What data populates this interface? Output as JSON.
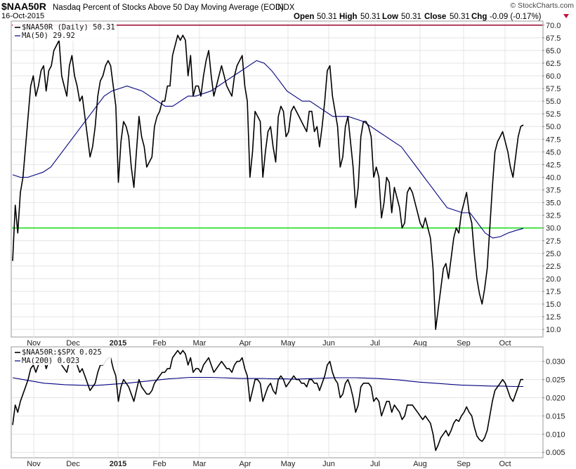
{
  "header": {
    "symbol": "$NAA50R",
    "description": "Nasdaq Percent of Stocks Above 50 Day Moving Average (EOD)",
    "exchange": "INDX",
    "date": "16-Oct-2015",
    "open_label": "Open",
    "open": "50.31",
    "high_label": "High",
    "high": "50.31",
    "low_label": "Low",
    "low": "50.31",
    "close_label": "Close",
    "close": "50.31",
    "chg_label": "Chg",
    "chg": "-0.09 (-0.17%)",
    "watermark": "© StockCharts.com",
    "down_arrow": "triangle-down-icon"
  },
  "chart_data": [
    {
      "type": "line",
      "panel": "main",
      "legend": [
        "$NAA50R (Daily) 50.31",
        "MA(50) 29.92"
      ],
      "ylim": [
        8.5,
        70.8
      ],
      "y_ticks": [
        "70.0",
        "67.5",
        "65.0",
        "62.5",
        "60.0",
        "57.5",
        "55.0",
        "52.5",
        "50.0",
        "47.5",
        "45.0",
        "42.5",
        "40.0",
        "37.5",
        "35.0",
        "32.5",
        "30.0",
        "27.5",
        "25.0",
        "22.5",
        "20.0",
        "17.5",
        "15.0",
        "12.5",
        "10.0"
      ],
      "x_labels": [
        "Nov",
        "Dec",
        "2015",
        "Feb",
        "Mar",
        "Apr",
        "May",
        "Jun",
        "Jul",
        "Aug",
        "Sep",
        "Oct"
      ],
      "reference_lines": [
        {
          "value": 70,
          "color": "#a0173a"
        },
        {
          "value": 30,
          "color": "#22dd22"
        }
      ],
      "series": [
        {
          "name": "$NAA50R (Daily)",
          "color": "#000000",
          "values": [
            23.5,
            34.5,
            29,
            37,
            40,
            46,
            52,
            58,
            60,
            56,
            58,
            61,
            62,
            57,
            61,
            62,
            65,
            66,
            67,
            60,
            58,
            56,
            62,
            64,
            60,
            58,
            55,
            56,
            52,
            48,
            44,
            46,
            50,
            56,
            59,
            60,
            62,
            63,
            62,
            58,
            54,
            39,
            47,
            51,
            50,
            48,
            42,
            38,
            45,
            52,
            48,
            46,
            42,
            43,
            44,
            50,
            52,
            53,
            55,
            55,
            58,
            58,
            64,
            66,
            68,
            67,
            68,
            67,
            60,
            64,
            56,
            58,
            58,
            56,
            60,
            63,
            65,
            60,
            56,
            58,
            60,
            62,
            60,
            58,
            57,
            56,
            60,
            62,
            63,
            64,
            58,
            55,
            40,
            45,
            53,
            52,
            51,
            40,
            45,
            49,
            50,
            46,
            43,
            52,
            54,
            53,
            48,
            49,
            53,
            54,
            53,
            52,
            51,
            50,
            49,
            53,
            53,
            49,
            50,
            46,
            50,
            55,
            61,
            62,
            56,
            53,
            50,
            42,
            44,
            50,
            52,
            47,
            42,
            34,
            38,
            48,
            51,
            51,
            50,
            48,
            40,
            42,
            40,
            32,
            35,
            40,
            39,
            33,
            38,
            36,
            34,
            30,
            31,
            37,
            38,
            37,
            35,
            33,
            31,
            30,
            32,
            30,
            28,
            22,
            10,
            14,
            18,
            22,
            23,
            20,
            24,
            28,
            30,
            29,
            33,
            35,
            37,
            33,
            31,
            25,
            20,
            17,
            15,
            18,
            22,
            30,
            38,
            45,
            47,
            48,
            49,
            47,
            45,
            42,
            40,
            44,
            48,
            50,
            50.31
          ]
        },
        {
          "name": "MA(50)",
          "color": "#000080",
          "values": [
            40.5,
            40,
            40,
            40.5,
            41,
            42,
            44,
            46,
            48,
            50,
            52,
            54,
            56,
            57,
            57.5,
            58,
            57.5,
            57,
            56,
            55,
            54,
            54,
            55,
            56,
            56,
            56.5,
            57,
            58,
            59,
            60,
            61,
            62,
            63,
            62.5,
            61,
            59,
            57,
            56,
            55,
            55,
            54,
            53,
            52,
            52,
            52,
            51.5,
            51,
            50,
            49,
            48,
            47,
            46,
            44,
            42,
            40,
            38,
            36,
            34,
            33.5,
            33,
            33,
            31,
            29,
            28,
            28.3,
            29,
            29.5,
            29.92
          ]
        }
      ]
    },
    {
      "type": "line",
      "panel": "lower",
      "legend": [
        "$NAA50R:$SPX 0.025",
        "MA(200) 0.023"
      ],
      "ylim": [
        0.0035,
        0.034
      ],
      "y_ticks": [
        "0.030",
        "0.025",
        "0.020",
        "0.015",
        "0.010",
        "0.005"
      ],
      "x_labels": [
        "Nov",
        "Dec",
        "2015",
        "Feb",
        "Mar",
        "Apr",
        "May",
        "Jun",
        "Jul",
        "Aug",
        "Sep",
        "Oct"
      ],
      "series": [
        {
          "name": "$NAA50R:$SPX",
          "color": "#000000",
          "values": [
            0.0125,
            0.018,
            0.016,
            0.019,
            0.021,
            0.023,
            0.025,
            0.028,
            0.029,
            0.027,
            0.029,
            0.03,
            0.031,
            0.028,
            0.03,
            0.031,
            0.032,
            0.032,
            0.033,
            0.029,
            0.028,
            0.027,
            0.03,
            0.031,
            0.03,
            0.029,
            0.027,
            0.028,
            0.026,
            0.024,
            0.022,
            0.023,
            0.024,
            0.027,
            0.029,
            0.029,
            0.03,
            0.031,
            0.031,
            0.028,
            0.026,
            0.019,
            0.023,
            0.025,
            0.024,
            0.023,
            0.021,
            0.019,
            0.022,
            0.025,
            0.023,
            0.022,
            0.021,
            0.021,
            0.022,
            0.024,
            0.025,
            0.026,
            0.027,
            0.027,
            0.028,
            0.028,
            0.031,
            0.032,
            0.033,
            0.032,
            0.033,
            0.032,
            0.029,
            0.031,
            0.027,
            0.028,
            0.028,
            0.027,
            0.029,
            0.03,
            0.031,
            0.029,
            0.027,
            0.028,
            0.029,
            0.03,
            0.029,
            0.028,
            0.028,
            0.027,
            0.029,
            0.03,
            0.03,
            0.031,
            0.028,
            0.026,
            0.019,
            0.022,
            0.025,
            0.025,
            0.024,
            0.019,
            0.021,
            0.023,
            0.024,
            0.022,
            0.021,
            0.025,
            0.026,
            0.025,
            0.023,
            0.024,
            0.025,
            0.026,
            0.025,
            0.025,
            0.024,
            0.024,
            0.023,
            0.025,
            0.025,
            0.024,
            0.024,
            0.022,
            0.024,
            0.026,
            0.029,
            0.03,
            0.027,
            0.025,
            0.024,
            0.02,
            0.021,
            0.024,
            0.025,
            0.023,
            0.02,
            0.016,
            0.018,
            0.023,
            0.024,
            0.024,
            0.024,
            0.023,
            0.019,
            0.02,
            0.019,
            0.015,
            0.017,
            0.019,
            0.019,
            0.016,
            0.018,
            0.017,
            0.016,
            0.014,
            0.015,
            0.018,
            0.018,
            0.018,
            0.017,
            0.016,
            0.015,
            0.014,
            0.015,
            0.014,
            0.013,
            0.01,
            0.0055,
            0.007,
            0.009,
            0.01,
            0.011,
            0.0095,
            0.011,
            0.013,
            0.014,
            0.0135,
            0.015,
            0.016,
            0.0175,
            0.016,
            0.015,
            0.012,
            0.0095,
            0.0085,
            0.008,
            0.009,
            0.011,
            0.015,
            0.019,
            0.022,
            0.023,
            0.024,
            0.025,
            0.024,
            0.022,
            0.02,
            0.019,
            0.021,
            0.023,
            0.025,
            0.025
          ]
        },
        {
          "name": "MA(200)",
          "color": "#000080",
          "values": [
            0.0255,
            0.025,
            0.0245,
            0.024,
            0.0238,
            0.0236,
            0.0235,
            0.0234,
            0.0234,
            0.0236,
            0.0238,
            0.024,
            0.0243,
            0.0246,
            0.0249,
            0.0252,
            0.0254,
            0.0256,
            0.0256,
            0.0256,
            0.0255,
            0.0254,
            0.0253,
            0.0253,
            0.0253,
            0.0252,
            0.0252,
            0.0251,
            0.0252,
            0.0253,
            0.0254,
            0.0255,
            0.0255,
            0.0255,
            0.0254,
            0.0253,
            0.0251,
            0.0249,
            0.0246,
            0.0243,
            0.0241,
            0.0239,
            0.0237,
            0.0235,
            0.0234,
            0.0233,
            0.0232,
            0.0232,
            0.0231,
            0.0231
          ]
        }
      ]
    }
  ]
}
